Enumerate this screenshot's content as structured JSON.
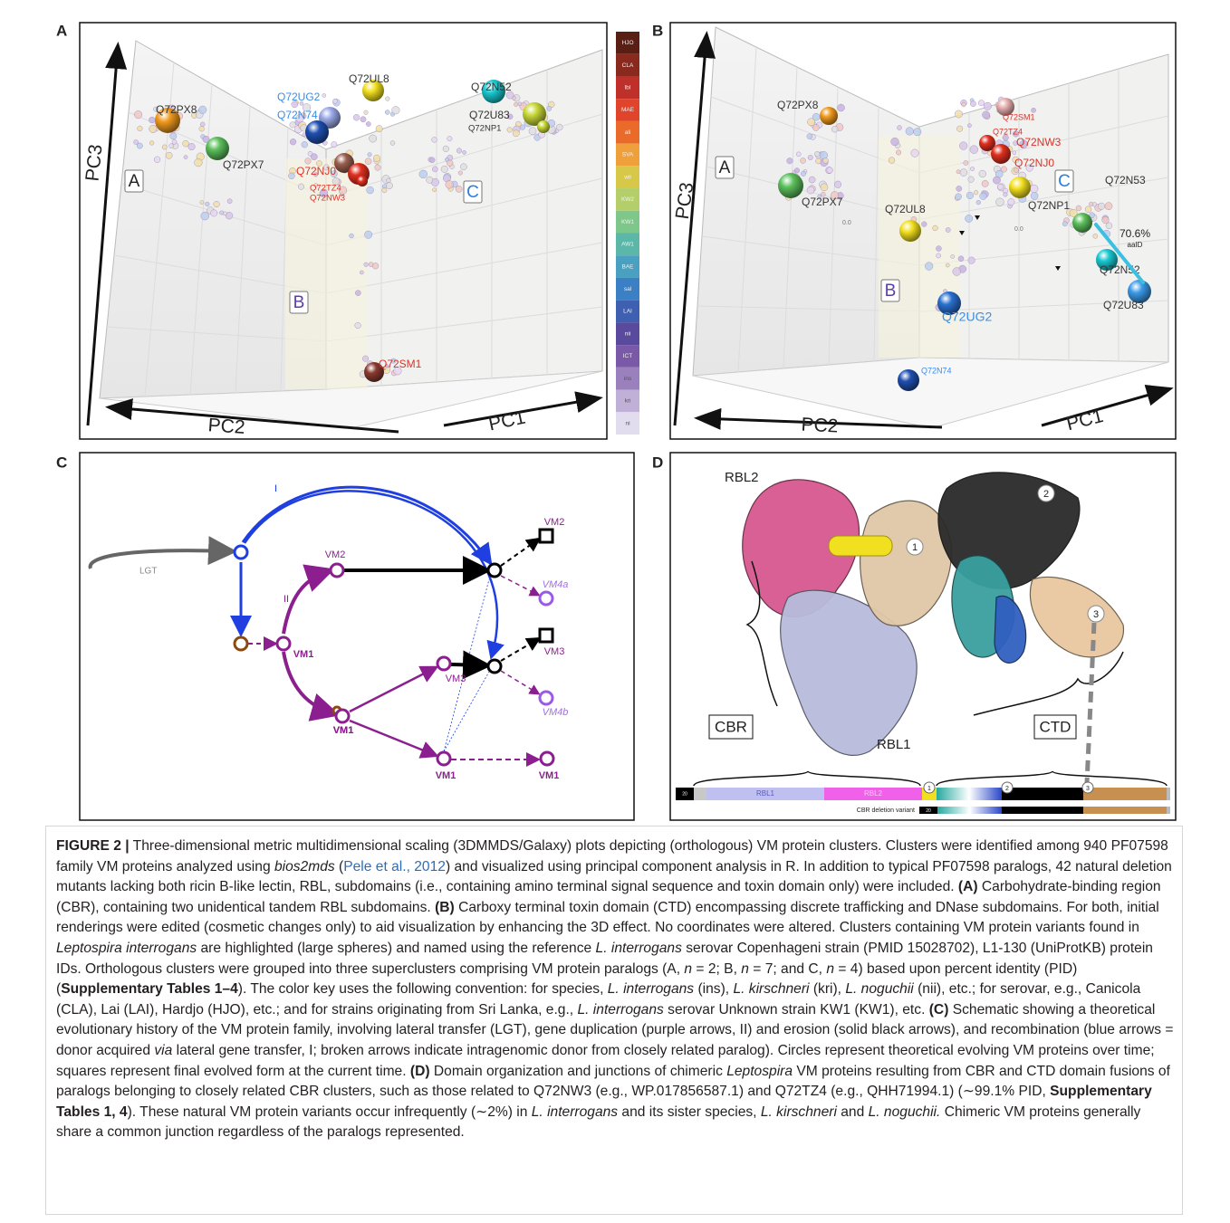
{
  "panel_a": {
    "letter": "A",
    "axis_pc3": "PC3",
    "axis_pc2": "PC2",
    "axis_pc1": "PC1",
    "supercluster_labels": [
      "A",
      "B",
      "C"
    ],
    "proteins": [
      "Q72PX8",
      "Q72PX7",
      "Q72UG2",
      "Q72N74",
      "Q72UL8",
      "Q72N52",
      "Q72U83",
      "Q72NP1",
      "Q72NJ0",
      "Q72TZ4",
      "Q72NW3",
      "Q72SM1"
    ]
  },
  "color_key": {
    "labels": [
      "HJO",
      "CLA",
      "lbl",
      "MAE",
      "ali",
      "SVA",
      "wil",
      "KW2",
      "KW1",
      "AW1",
      "BAE",
      "sal",
      "LAI",
      "nii",
      "ICT",
      "ins",
      "kri",
      "ni"
    ],
    "colors": [
      "#5a1f14",
      "#8a2a1f",
      "#c0302b",
      "#e0452b",
      "#ea6a2a",
      "#f0a03a",
      "#d8c84a",
      "#b4cf6a",
      "#7ec78a",
      "#5bb8a8",
      "#4aa0c0",
      "#3b7fc4",
      "#3f5fb0",
      "#5a4a9e",
      "#7a5aa8",
      "#9a80bc",
      "#c0b0d8",
      "#e2dcef"
    ]
  },
  "panel_b": {
    "letter": "B",
    "axis_pc3": "PC3",
    "axis_pc2": "PC2",
    "axis_pc1": "PC1",
    "supercluster_labels": [
      "A",
      "B",
      "C"
    ],
    "proteins": [
      "Q72PX8",
      "Q72PX7",
      "Q72SM1",
      "Q72TZ4",
      "Q72NW3",
      "Q72NJ0",
      "Q72NP1",
      "Q72N53",
      "Q72UL8",
      "Q72N52",
      "Q72U83",
      "Q72UG2",
      "Q72N74"
    ],
    "axis_zero_labels": [
      "0.0",
      "0.0"
    ],
    "identity": "70.6%",
    "identity_unit": "aaID"
  },
  "panel_c": {
    "letter": "C",
    "lgt": "LGT",
    "route_i": "I",
    "route_ii": "II",
    "nodes": [
      "VM2",
      "VM1",
      "VM1",
      "VM1",
      "VM3",
      "VM2",
      "VM4a",
      "VM3",
      "VM4b",
      "VM1",
      "VM1"
    ]
  },
  "panel_d": {
    "letter": "D",
    "rbl2": "RBL2",
    "rbl1": "RBL1",
    "cbr": "CBR",
    "ctd": "CTD",
    "junctions": [
      "1",
      "2",
      "3"
    ],
    "bar": {
      "signal": "20",
      "rbl1": "RBL1",
      "rbl2": "RBL2",
      "deletion_variant": "CBR deletion variant",
      "deletion_signal": "20"
    }
  },
  "caption": {
    "runs": [
      {
        "text": "FIGURE 2 |",
        "style": "bold"
      },
      {
        "text": " Three-dimensional metric multidimensional scaling (3DMMDS/Galaxy) plots depicting (orthologous) VM protein clusters. Clusters were identified among 940 PF07598 family VM proteins analyzed using "
      },
      {
        "text": "bios2mds",
        "style": "italic"
      },
      {
        "text": " ("
      },
      {
        "text": "Pele et al., 2012",
        "style": "link"
      },
      {
        "text": ") and visualized using principal component analysis in R. In addition to typical PF07598 paralogs, 42 natural deletion mutants lacking both ricin B-like lectin, RBL, subdomains (i.e., containing amino terminal signal sequence and toxin domain only) were included. "
      },
      {
        "text": "(A)",
        "style": "bold"
      },
      {
        "text": " Carbohydrate-binding region (CBR), containing two unidentical tandem RBL subdomains. "
      },
      {
        "text": "(B)",
        "style": "bold"
      },
      {
        "text": " Carboxy terminal toxin domain (CTD) encompassing discrete trafficking and DNase subdomains. For both, initial renderings were edited (cosmetic changes only) to aid visualization by enhancing the 3D effect. No coordinates were altered. Clusters containing VM protein variants found in "
      },
      {
        "text": "Leptospira interrogans",
        "style": "italic"
      },
      {
        "text": " are highlighted (large spheres) and named using the reference "
      },
      {
        "text": "L. interrogans",
        "style": "italic"
      },
      {
        "text": " serovar Copenhageni strain (PMID 15028702), L1-130 (UniProtKB) protein IDs. Orthologous clusters were grouped into three superclusters comprising VM protein paralogs (A, "
      },
      {
        "text": "n",
        "style": "italic"
      },
      {
        "text": " = 2; B, "
      },
      {
        "text": "n",
        "style": "italic"
      },
      {
        "text": " = 7; and C, "
      },
      {
        "text": "n",
        "style": "italic"
      },
      {
        "text": " = 4) based upon percent identity (PID) ("
      },
      {
        "text": "Supplementary Tables 1–4",
        "style": "bold"
      },
      {
        "text": "). The color key uses the following convention: for species, "
      },
      {
        "text": "L. interrogans",
        "style": "italic"
      },
      {
        "text": " (ins), "
      },
      {
        "text": "L. kirschneri",
        "style": "italic"
      },
      {
        "text": " (kri), "
      },
      {
        "text": "L. noguchii",
        "style": "italic"
      },
      {
        "text": " (nii), etc.; for serovar, e.g., Canicola (CLA), Lai (LAI), Hardjo (HJO), etc.; and for strains originating from Sri Lanka, e.g., "
      },
      {
        "text": "L. interrogans",
        "style": "italic"
      },
      {
        "text": " serovar Unknown strain KW1 (KW1), etc. "
      },
      {
        "text": "(C)",
        "style": "bold"
      },
      {
        "text": " Schematic showing a theoretical evolutionary history of the VM protein family, involving lateral transfer (LGT), gene duplication (purple arrows, II) and erosion (solid black arrows), and recombination (blue arrows = donor acquired "
      },
      {
        "text": "via",
        "style": "italic"
      },
      {
        "text": " lateral gene transfer, I; broken arrows indicate intragenomic donor from closely related paralog). Circles represent theoretical evolving VM proteins over time; squares represent final evolved form at the current time. "
      },
      {
        "text": "(D)",
        "style": "bold"
      },
      {
        "text": " Domain organization and junctions of chimeric "
      },
      {
        "text": "Leptospira",
        "style": "italic"
      },
      {
        "text": " VM proteins resulting from CBR and CTD domain fusions of paralogs belonging to closely related CBR clusters, such as those related to Q72NW3 (e.g., WP.017856587.1) and Q72TZ4 (e.g., QHH71994.1) (∼99.1% PID, "
      },
      {
        "text": "Supplementary Tables 1, 4",
        "style": "bold"
      },
      {
        "text": "). These natural VM protein variants occur infrequently (∼2%) in "
      },
      {
        "text": "L. interrogans",
        "style": "italic"
      },
      {
        "text": " and its sister species, "
      },
      {
        "text": "L. kirschneri",
        "style": "italic"
      },
      {
        "text": " and "
      },
      {
        "text": "L. noguchii.",
        "style": "italic"
      },
      {
        "text": " Chimeric VM proteins generally share a common junction regardless of the paralogs represented."
      }
    ]
  }
}
